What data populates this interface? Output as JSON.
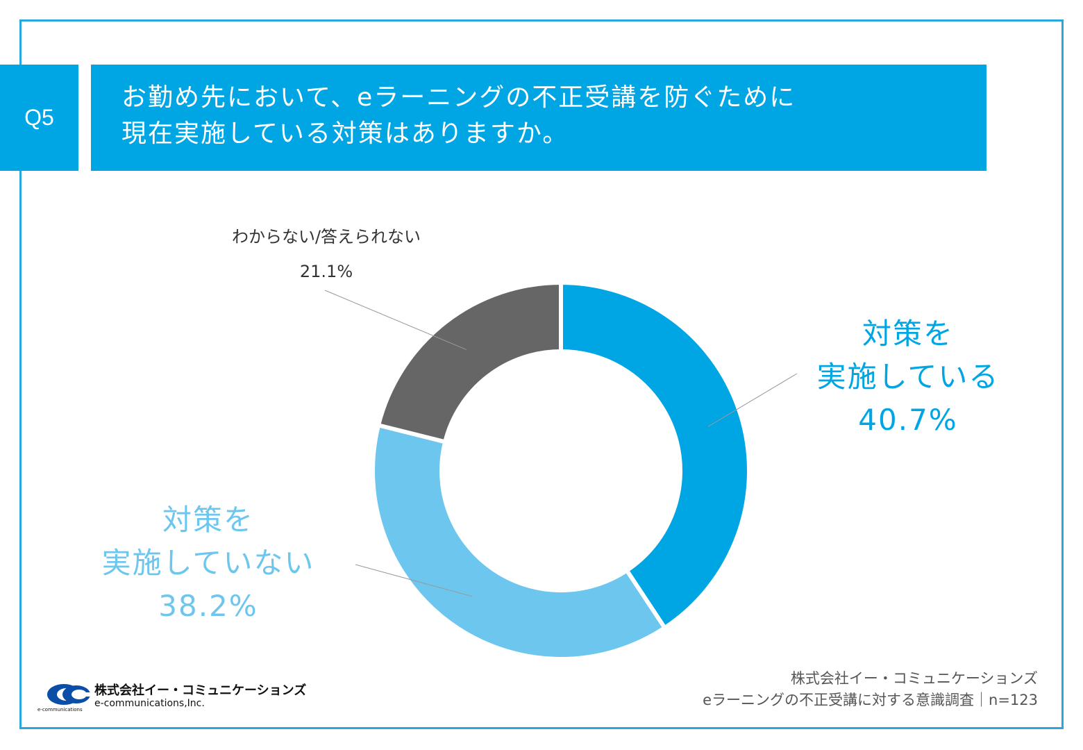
{
  "question": {
    "badge": "Q5",
    "line1": "お勤め先において、eラーニングの不正受講を防ぐために",
    "line2": "現在実施している対策はありますか。"
  },
  "chart_data": {
    "type": "pie",
    "donut": true,
    "slices": [
      {
        "label": "対策を実施している",
        "label_lines": [
          "対策を",
          "実施している"
        ],
        "value_text": "40.7%",
        "value": 40.7,
        "color": "#00a5e3"
      },
      {
        "label": "対策を実施していない",
        "label_lines": [
          "対策を",
          "実施していない"
        ],
        "value_text": "38.2%",
        "value": 38.2,
        "color": "#6cc6ee"
      },
      {
        "label": "わからない/答えられない",
        "label_lines": [
          "わからない/答えられない"
        ],
        "value_text": "21.1%",
        "value": 21.1,
        "color": "#666666"
      }
    ]
  },
  "logo": {
    "name_jp": "株式会社イー・コミュニケーションズ",
    "name_en": "e-communications,Inc.",
    "mark_text": "e-communications"
  },
  "source": {
    "line1": "株式会社イー・コミュニケーションズ",
    "line2": "eラーニングの不正受講に対する意識調査｜n=123"
  }
}
